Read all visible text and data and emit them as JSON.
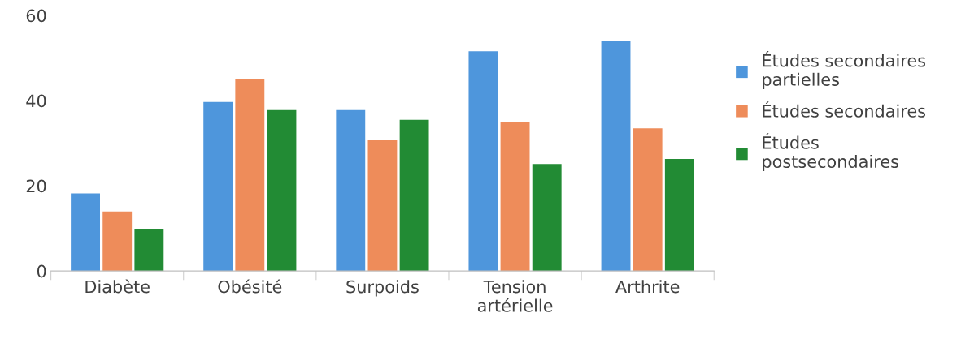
{
  "chart_data": {
    "type": "bar",
    "categories": [
      "Diabète",
      "Obésité",
      "Surpoids",
      "Tension\nartérielle",
      "Arthrite"
    ],
    "series": [
      {
        "name": "Études secondaires\npartielles",
        "color": "#4e96dc",
        "values": [
          18.2,
          39.7,
          37.8,
          51.6,
          54.1
        ]
      },
      {
        "name": "Études secondaires",
        "color": "#ee8c5a",
        "values": [
          14.0,
          45.0,
          30.7,
          34.9,
          33.5
        ]
      },
      {
        "name": "Études\npostsecondaires",
        "color": "#228b34",
        "values": [
          9.8,
          37.8,
          35.5,
          25.1,
          26.3
        ]
      }
    ],
    "ylim": [
      0,
      60
    ],
    "yticks": [
      0,
      20,
      40,
      60
    ],
    "grid": false,
    "legend": "right"
  }
}
